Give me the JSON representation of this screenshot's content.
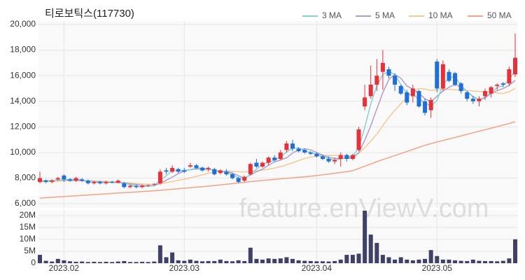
{
  "chart_data": {
    "type": "candlestick",
    "title": "티로보틱스(117730)",
    "watermark": "feature.enViewV.com",
    "categories": [
      null,
      null,
      null,
      null,
      "2023.02",
      null,
      null,
      null,
      null,
      null,
      null,
      null,
      null,
      null,
      null,
      null,
      null,
      null,
      null,
      null,
      null,
      null,
      null,
      null,
      "2023.03",
      null,
      null,
      null,
      null,
      null,
      null,
      null,
      null,
      null,
      null,
      null,
      null,
      null,
      null,
      null,
      null,
      null,
      null,
      null,
      null,
      null,
      "2023.04",
      null,
      null,
      null,
      null,
      null,
      null,
      null,
      null,
      null,
      null,
      null,
      null,
      null,
      null,
      null,
      null,
      null,
      null,
      null,
      "2023.05",
      null,
      null,
      null,
      null,
      null,
      null,
      null,
      null,
      null,
      null,
      null,
      null,
      null
    ],
    "open": [
      7700,
      7800,
      7700,
      7900,
      8200,
      7900,
      7800,
      7900,
      7800,
      7600,
      7700,
      7600,
      7700,
      7650,
      7600,
      7300,
      7400,
      7300,
      7400,
      7500,
      7600,
      8600,
      8500,
      8700,
      8600,
      8900,
      9000,
      8800,
      8700,
      8700,
      8400,
      8500,
      8300,
      8000,
      7800,
      8300,
      9200,
      8900,
      9200,
      9600,
      9500,
      10200,
      10700,
      10300,
      10200,
      10000,
      9900,
      9700,
      9500,
      9300,
      9500,
      9800,
      9500,
      10200,
      13600,
      14400,
      15300,
      16300,
      16500,
      16000,
      15200,
      14700,
      14400,
      14800,
      14000,
      13300,
      17100,
      15000,
      16300,
      16200,
      15400,
      14700,
      14200,
      14000,
      14400,
      14600,
      15200,
      15400,
      15400,
      16100
    ],
    "high": [
      8500,
      7900,
      7900,
      8100,
      8300,
      8000,
      8100,
      8000,
      7900,
      7800,
      7800,
      7800,
      7800,
      7900,
      7700,
      7500,
      7500,
      7500,
      7500,
      7600,
      8700,
      8800,
      9000,
      8800,
      8800,
      9200,
      9100,
      8900,
      8900,
      8800,
      8700,
      8700,
      8400,
      8100,
      8200,
      9200,
      9500,
      9300,
      9700,
      9800,
      10200,
      10900,
      11000,
      10400,
      10300,
      10100,
      10000,
      9800,
      9700,
      9600,
      10000,
      9900,
      9900,
      12000,
      15300,
      16800,
      17300,
      18000,
      16700,
      16200,
      15300,
      14900,
      15300,
      14900,
      14200,
      14300,
      17300,
      17200,
      16500,
      16300,
      15500,
      14800,
      14400,
      14400,
      15000,
      15200,
      15400,
      15500,
      16700,
      19300
    ],
    "low": [
      7600,
      7600,
      7600,
      7800,
      7700,
      7700,
      7700,
      7700,
      7500,
      7500,
      7500,
      7500,
      7600,
      7600,
      7200,
      7200,
      7200,
      7200,
      7300,
      7400,
      7500,
      8300,
      8400,
      8400,
      8400,
      8800,
      8700,
      8500,
      8500,
      8200,
      8300,
      8200,
      7900,
      7600,
      7700,
      8200,
      8800,
      8800,
      9000,
      9300,
      9400,
      10000,
      10100,
      10000,
      9900,
      9800,
      9600,
      9400,
      9200,
      9100,
      8900,
      9300,
      9400,
      10100,
      13300,
      14200,
      14800,
      14900,
      15800,
      14800,
      14500,
      13700,
      13900,
      13500,
      12900,
      12700,
      14700,
      14800,
      15500,
      15200,
      14600,
      14000,
      13800,
      13600,
      14100,
      14300,
      14900,
      15100,
      15200,
      15900
    ],
    "close": [
      8000,
      7700,
      7800,
      8000,
      7900,
      7800,
      8000,
      7800,
      7600,
      7700,
      7600,
      7700,
      7650,
      7800,
      7300,
      7400,
      7300,
      7400,
      7450,
      7550,
      8500,
      8500,
      8800,
      8500,
      8500,
      9000,
      8800,
      8600,
      8800,
      8300,
      8600,
      8300,
      8000,
      7700,
      8100,
      9100,
      8900,
      9200,
      9600,
      9400,
      10000,
      10700,
      10300,
      10100,
      10000,
      9900,
      9700,
      9500,
      9300,
      9400,
      9800,
      9500,
      9800,
      11800,
      14300,
      15300,
      16000,
      17000,
      16000,
      15300,
      14600,
      13900,
      15000,
      13600,
      13100,
      14100,
      15000,
      16900,
      15600,
      15300,
      14800,
      14200,
      14000,
      14200,
      14800,
      15100,
      15300,
      15300,
      16500,
      17400
    ],
    "up_color": "#e8303a",
    "down_color": "#1e6fd9",
    "series": [
      {
        "name": "3 MA",
        "color": "#86d2d2",
        "values": [
          7800,
          7800,
          7830,
          7830,
          7870,
          7900,
          7900,
          7870,
          7730,
          7700,
          7630,
          7670,
          7650,
          7720,
          7580,
          7500,
          7330,
          7330,
          7380,
          7430,
          7830,
          8180,
          8600,
          8600,
          8600,
          8670,
          8770,
          8800,
          8730,
          8570,
          8570,
          8400,
          8300,
          8000,
          7930,
          8300,
          8700,
          9070,
          9230,
          9400,
          9670,
          10030,
          10330,
          10370,
          10130,
          10000,
          9870,
          9700,
          9500,
          9400,
          9500,
          9570,
          9700,
          10370,
          11970,
          13800,
          15200,
          16100,
          16330,
          16100,
          15300,
          14600,
          14500,
          14170,
          13900,
          13600,
          14070,
          15330,
          15830,
          15930,
          15230,
          14770,
          14330,
          14130,
          14330,
          14700,
          15070,
          15230,
          15700,
          16400
        ]
      },
      {
        "name": "5 MA",
        "color": "#b29ccb",
        "values": [
          7800,
          7800,
          7820,
          7840,
          7860,
          7840,
          7820,
          7800,
          7760,
          7720,
          7700,
          7680,
          7660,
          7640,
          7600,
          7560,
          7500,
          7440,
          7380,
          7400,
          7600,
          7840,
          8080,
          8340,
          8560,
          8660,
          8720,
          8700,
          8680,
          8620,
          8500,
          8520,
          8400,
          8180,
          8000,
          8240,
          8500,
          8700,
          9000,
          9260,
          9420,
          9580,
          9960,
          10200,
          10300,
          10200,
          10000,
          9800,
          9620,
          9540,
          9540,
          9560,
          9560,
          9980,
          10960,
          12100,
          13400,
          14680,
          15700,
          16100,
          15800,
          15200,
          14940,
          14620,
          14200,
          13960,
          14400,
          14800,
          15100,
          15300,
          15120,
          14780,
          14380,
          14120,
          14260,
          14620,
          14840,
          15000,
          15240,
          15640
        ]
      },
      {
        "name": "10 MA",
        "color": "#f2cb92",
        "values": [
          7700,
          7720,
          7740,
          7760,
          7780,
          7800,
          7810,
          7810,
          7800,
          7780,
          7760,
          7740,
          7720,
          7700,
          7660,
          7620,
          7580,
          7540,
          7510,
          7490,
          7560,
          7640,
          7740,
          7820,
          7920,
          8020,
          8140,
          8260,
          8380,
          8480,
          8530,
          8560,
          8540,
          8500,
          8470,
          8520,
          8560,
          8620,
          8700,
          8780,
          8900,
          9040,
          9200,
          9370,
          9530,
          9650,
          9720,
          9760,
          9780,
          9790,
          9770,
          9720,
          9700,
          9930,
          10380,
          10890,
          11430,
          12100,
          12750,
          13300,
          13820,
          14300,
          14720,
          15000,
          14950,
          14850,
          14900,
          14950,
          14930,
          14900,
          14880,
          14850,
          14800,
          14780,
          14750,
          14700,
          14650,
          14600,
          14750,
          15000
        ]
      },
      {
        "name": "50 MA",
        "color": "#f4a286",
        "values": [
          6440,
          6470,
          6500,
          6530,
          6560,
          6590,
          6620,
          6650,
          6680,
          6710,
          6740,
          6770,
          6800,
          6830,
          6860,
          6890,
          6920,
          6950,
          6980,
          7010,
          7050,
          7090,
          7130,
          7170,
          7210,
          7250,
          7290,
          7330,
          7370,
          7420,
          7470,
          7520,
          7570,
          7620,
          7670,
          7720,
          7770,
          7820,
          7860,
          7900,
          7940,
          7980,
          8020,
          8060,
          8100,
          8150,
          8200,
          8260,
          8320,
          8380,
          8440,
          8500,
          8580,
          8750,
          8930,
          9100,
          9280,
          9450,
          9600,
          9760,
          9920,
          10080,
          10240,
          10400,
          10560,
          10700,
          10820,
          10940,
          11060,
          11180,
          11300,
          11420,
          11540,
          11660,
          11780,
          11900,
          12020,
          12140,
          12270,
          12400
        ]
      }
    ],
    "ylim": [
      6000,
      20000
    ],
    "yticks": [
      {
        "value": 6000,
        "label": "6,000"
      },
      {
        "value": 8000,
        "label": "8,000"
      },
      {
        "value": 10000,
        "label": "10,000"
      },
      {
        "value": 12000,
        "label": "12,000"
      },
      {
        "value": 14000,
        "label": "14,000"
      },
      {
        "value": 16000,
        "label": "16,000"
      },
      {
        "value": 18000,
        "label": "18,000"
      },
      {
        "value": 20000,
        "label": "20,000"
      }
    ],
    "grid": true,
    "volume": {
      "type": "bar",
      "color": "#3f4266",
      "values": [
        3500000,
        1000000,
        700000,
        1800000,
        1200000,
        800000,
        600000,
        700000,
        500000,
        600000,
        500000,
        600000,
        500000,
        700000,
        900000,
        500000,
        500000,
        600000,
        500000,
        700000,
        7500000,
        2500000,
        4500000,
        1200000,
        1000000,
        1500000,
        1000000,
        800000,
        900000,
        900000,
        1500000,
        900000,
        800000,
        1200000,
        900000,
        6500000,
        1800000,
        1500000,
        2000000,
        1800000,
        2000000,
        2500000,
        1800000,
        1200000,
        1000000,
        900000,
        800000,
        800000,
        700000,
        900000,
        1500000,
        3500000,
        3500000,
        4000000,
        22000000,
        12000000,
        8500000,
        3500000,
        2500000,
        1500000,
        2500000,
        1500000,
        1200000,
        1500000,
        1800000,
        5500000,
        3000000,
        1500000,
        1500000,
        1200000,
        1000000,
        900000,
        1500000,
        1000000,
        900000,
        900000,
        800000,
        1000000,
        2000000,
        10000000
      ],
      "ylim": [
        0,
        22000000
      ],
      "yticks": [
        {
          "value": 0,
          "label": "0"
        },
        {
          "value": 5000000,
          "label": "5M"
        },
        {
          "value": 10000000,
          "label": "10M"
        },
        {
          "value": 15000000,
          "label": "15M"
        },
        {
          "value": 20000000,
          "label": "20M"
        }
      ]
    }
  }
}
